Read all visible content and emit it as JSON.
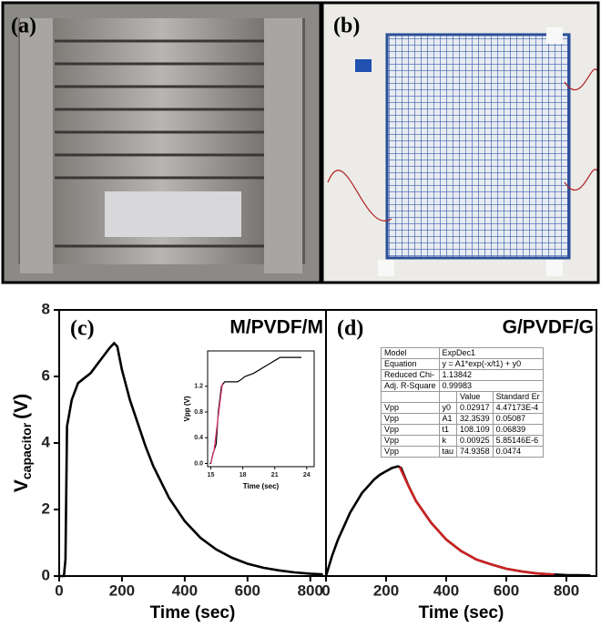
{
  "panels": [
    {
      "label": "(a)"
    },
    {
      "label": "(b)"
    }
  ],
  "ylabel": {
    "main": "V",
    "sub": "capacitor",
    "unit": "(V)"
  },
  "chart_data": [
    {
      "type": "line",
      "label": "(c)",
      "title": "M/PVDF/M",
      "xlabel": "Time (sec)",
      "xlim": [
        0,
        850
      ],
      "xticks": [
        0,
        200,
        400,
        600,
        800
      ],
      "ylim": [
        0,
        8
      ],
      "yticks": [
        0,
        2,
        4,
        6,
        8
      ],
      "series": [
        {
          "color": "#000000",
          "x": [
            0,
            15,
            20,
            25,
            40,
            60,
            80,
            100,
            120,
            140,
            160,
            175,
            185,
            200,
            225,
            250,
            275,
            300,
            350,
            400,
            450,
            500,
            550,
            600,
            650,
            700,
            750,
            800,
            840
          ],
          "values": [
            0,
            0,
            0.5,
            4.5,
            5.3,
            5.8,
            5.95,
            6.1,
            6.35,
            6.6,
            6.85,
            7.0,
            6.9,
            6.2,
            5.3,
            4.6,
            3.9,
            3.3,
            2.35,
            1.65,
            1.15,
            0.8,
            0.55,
            0.37,
            0.25,
            0.17,
            0.11,
            0.07,
            0.05
          ]
        }
      ]
    },
    {
      "type": "line",
      "label": "(d)",
      "title": "G/PVDF/G",
      "xlabel": "Time (sec)",
      "xlim": [
        0,
        900
      ],
      "xticks": [
        0,
        200,
        400,
        600,
        800
      ],
      "ylim": [
        0,
        8
      ],
      "series": [
        {
          "color": "#000000",
          "x": [
            0,
            10,
            20,
            40,
            60,
            80,
            100,
            120,
            140,
            160,
            180,
            200,
            220,
            240,
            250,
            275,
            300,
            350,
            400,
            450,
            500,
            550,
            600,
            650,
            700,
            750,
            800,
            880
          ],
          "values": [
            0,
            0.3,
            0.6,
            1.1,
            1.5,
            1.9,
            2.2,
            2.5,
            2.7,
            2.9,
            3.05,
            3.15,
            3.25,
            3.3,
            3.25,
            2.7,
            2.25,
            1.6,
            1.1,
            0.75,
            0.5,
            0.35,
            0.22,
            0.14,
            0.08,
            0.05,
            0.03,
            0.02
          ]
        },
        {
          "color": "#cc2222",
          "x": [
            245,
            275,
            300,
            350,
            400,
            450,
            500,
            550,
            600,
            650,
            700,
            760
          ],
          "values": [
            3.28,
            2.7,
            2.25,
            1.6,
            1.1,
            0.75,
            0.5,
            0.35,
            0.22,
            0.14,
            0.08,
            0.04
          ]
        }
      ]
    },
    {
      "type": "line",
      "xlabel": "Time (sec)",
      "ylabel": "Vpp (V)",
      "xlim": [
        14.7,
        24.7
      ],
      "xticks": [
        15,
        18,
        21,
        24
      ],
      "ylim": [
        -0.05,
        1.75
      ],
      "yticks": [
        {
          "value": 0,
          "label": "0.0"
        },
        {
          "value": 0.4,
          "label": "0.4"
        },
        {
          "value": 0.8,
          "label": "0.8"
        },
        {
          "value": 1.2,
          "label": "1.2"
        }
      ],
      "series": [
        {
          "color": "#000000",
          "x": [
            14.9,
            15.0,
            15.2,
            15.5,
            15.7,
            16.0,
            16.3,
            17.5,
            17.8,
            18.2,
            19.0,
            19.5,
            20.0,
            20.5,
            21.2,
            21.5,
            23.5
          ],
          "values": [
            0,
            0,
            0.15,
            0.3,
            0.8,
            1.2,
            1.27,
            1.27,
            1.3,
            1.35,
            1.4,
            1.45,
            1.5,
            1.55,
            1.62,
            1.65,
            1.65
          ]
        },
        {
          "color": "#e0306a",
          "x": [
            15.0,
            15.3,
            15.6,
            15.9,
            16.1
          ],
          "values": [
            0,
            0.2,
            0.6,
            1.0,
            1.25
          ]
        }
      ]
    }
  ],
  "fit_table": {
    "rows": [
      [
        "Model",
        "ExpDec1"
      ],
      [
        "Equation",
        "y = A1*exp(-x/t1) + y0"
      ],
      [
        "Reduced Chi-",
        "1.13842"
      ],
      [
        "Adj. R-Square",
        "0.99983"
      ],
      [
        "",
        "",
        "Value",
        "Standard Er"
      ],
      [
        "Vpp",
        "y0",
        "0.02917",
        "4.47173E-4"
      ],
      [
        "Vpp",
        "A1",
        "32.3539",
        "0.05087"
      ],
      [
        "Vpp",
        "t1",
        "108.109",
        "0.06839"
      ],
      [
        "Vpp",
        "k",
        "0.00925",
        "5.85146E-6"
      ],
      [
        "Vpp",
        "tau",
        "74.9358",
        "0.0474"
      ]
    ]
  }
}
